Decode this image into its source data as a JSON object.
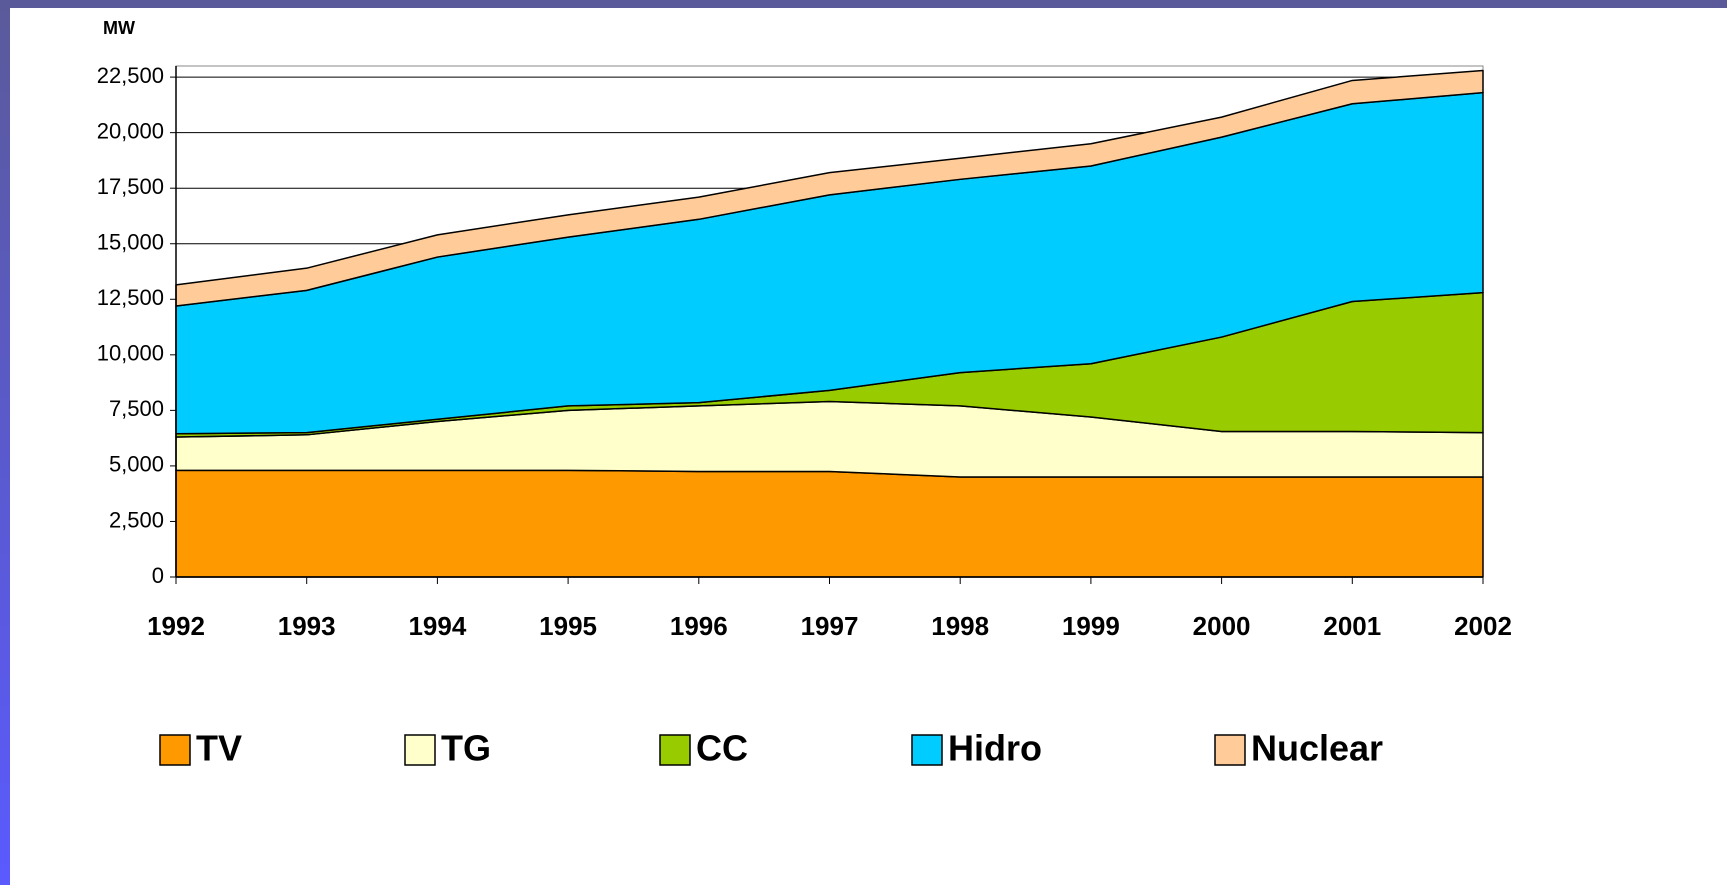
{
  "chart_data": {
    "type": "stacked_area",
    "y_label": "MW",
    "categories": [
      "1992",
      "1993",
      "1994",
      "1995",
      "1996",
      "1997",
      "1998",
      "1999",
      "2000",
      "2001",
      "2002"
    ],
    "series": [
      {
        "name": "TV",
        "color": "#ff9900",
        "values": [
          4800,
          4800,
          4800,
          4800,
          4750,
          4750,
          4500,
          4500,
          4500,
          4500,
          4500
        ]
      },
      {
        "name": "TG",
        "color": "#ffffcc",
        "values": [
          1500,
          1600,
          2200,
          2700,
          2950,
          3150,
          3200,
          2700,
          2050,
          2050,
          2000
        ]
      },
      {
        "name": "CC",
        "color": "#99cc00",
        "values": [
          150,
          100,
          100,
          200,
          150,
          500,
          1500,
          2400,
          4250,
          5850,
          6300
        ]
      },
      {
        "name": "Hidro",
        "color": "#00ccff",
        "values": [
          5750,
          6400,
          7300,
          7600,
          8250,
          8800,
          8700,
          8900,
          9000,
          8900,
          9000
        ]
      },
      {
        "name": "Nuclear",
        "color": "#ffcc99",
        "values": [
          950,
          1000,
          1000,
          1000,
          1000,
          1000,
          950,
          1000,
          900,
          1050,
          1000
        ]
      }
    ],
    "ylim": [
      0,
      23000
    ],
    "yticks": [
      0,
      {
        "value": 2500,
        "label": "2,500"
      },
      {
        "value": 5000,
        "label": "5,000"
      },
      {
        "value": 7500,
        "label": "7,500"
      },
      {
        "value": 10000,
        "label": "10,000"
      },
      {
        "value": 12500,
        "label": "12,500"
      },
      {
        "value": 15000,
        "label": "15,000"
      },
      {
        "value": 17500,
        "label": "17,500"
      },
      {
        "value": 20000,
        "label": "20,000"
      },
      {
        "value": 22500,
        "label": "22,500"
      }
    ],
    "grid": true,
    "legend": "bottom"
  }
}
